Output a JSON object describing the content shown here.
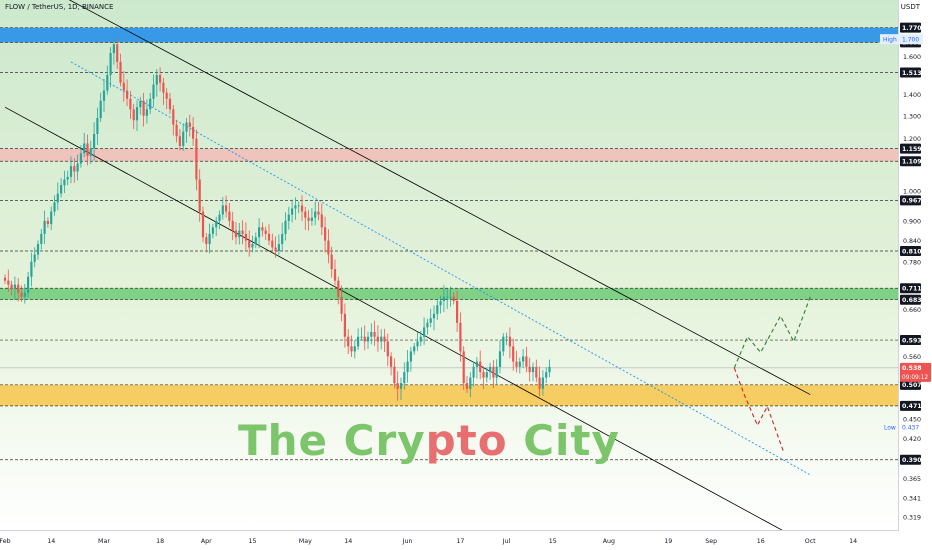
{
  "header": {
    "title": "FLOW / TetherUS, 1D, BINANCE",
    "currency": "USDT"
  },
  "watermark": {
    "part1": "The Cry",
    "part2": "pto",
    "part3": " City"
  },
  "colors": {
    "up": "#26a69a",
    "down": "#ef5350",
    "blue_zone": "#2f96e8",
    "red_zone": "#f4b6b6",
    "green_zone": "#5ec66a",
    "yellow_zone": "#f7c54a",
    "trend_line": "#000000",
    "mid_line": "#2196f3",
    "bg_top": "#cde9cd",
    "bg_bottom": "#ffffff"
  },
  "chart_data": {
    "type": "candlestick",
    "symbol": "FLOW / TetherUS",
    "interval": "1D",
    "exchange": "BINANCE",
    "y_scale": "log",
    "ylim": [
      0.305,
      1.95
    ],
    "x_axis_labels": [
      "Feb",
      "14",
      "Mar",
      "18",
      "Apr",
      "15",
      "May",
      "14",
      "Jun",
      "17",
      "Jul",
      "15",
      "Aug",
      "19",
      "Sep",
      "16",
      "Oct",
      "14"
    ],
    "y_tick_labels": [
      "1.600",
      "1.400",
      "1.300",
      "1.200",
      "1.000",
      "0.900",
      "0.840",
      "0.780",
      "0.660",
      "0.560",
      "0.450",
      "0.420",
      "0.365",
      "0.341",
      "0.319"
    ],
    "price_levels": [
      "1.770",
      "1.681",
      "1.513",
      "1.159",
      "1.109",
      "0.967",
      "0.810",
      "0.711",
      "0.683",
      "0.593",
      "0.507",
      "0.471",
      "0.390"
    ],
    "markers": {
      "high": {
        "label": "High",
        "value": "1.700"
      },
      "low": {
        "label": "Low",
        "value": "0.437"
      },
      "current": {
        "value": "0.538",
        "countdown": "09:09:12"
      }
    },
    "zones": [
      {
        "name": "blue",
        "from": 1.681,
        "to": 1.77
      },
      {
        "name": "red",
        "from": 1.109,
        "to": 1.159
      },
      {
        "name": "green",
        "from": 0.683,
        "to": 0.711
      },
      {
        "name": "yellow",
        "from": 0.471,
        "to": 0.507
      }
    ],
    "dashed_levels": [
      1.513,
      0.967,
      0.81,
      0.593,
      0.39
    ],
    "channel": {
      "upper": [
        [
          "Jan 31",
          2.2
        ],
        [
          "Oct 1",
          0.49
        ]
      ],
      "lower": [
        [
          "Jan 31",
          1.34
        ],
        [
          "Sep 25",
          0.3
        ]
      ],
      "middle": [
        [
          "Feb 20",
          1.57
        ],
        [
          "Oct 1",
          0.37
        ]
      ]
    },
    "close_series": [
      0.73,
      0.72,
      0.71,
      0.72,
      0.7,
      0.69,
      0.7,
      0.74,
      0.78,
      0.8,
      0.83,
      0.86,
      0.9,
      0.89,
      0.93,
      0.96,
      0.99,
      1.02,
      1.04,
      1.05,
      1.09,
      1.07,
      1.1,
      1.14,
      1.18,
      1.13,
      1.16,
      1.22,
      1.29,
      1.37,
      1.42,
      1.5,
      1.62,
      1.67,
      1.57,
      1.46,
      1.42,
      1.38,
      1.33,
      1.28,
      1.34,
      1.37,
      1.3,
      1.33,
      1.38,
      1.45,
      1.5,
      1.46,
      1.41,
      1.38,
      1.33,
      1.26,
      1.21,
      1.17,
      1.23,
      1.27,
      1.25,
      1.2,
      1.04,
      0.93,
      0.85,
      0.83,
      0.86,
      0.88,
      0.9,
      0.92,
      0.95,
      0.93,
      0.9,
      0.87,
      0.85,
      0.87,
      0.86,
      0.84,
      0.82,
      0.83,
      0.85,
      0.88,
      0.87,
      0.86,
      0.84,
      0.82,
      0.81,
      0.83,
      0.86,
      0.9,
      0.92,
      0.94,
      0.95,
      0.95,
      0.93,
      0.91,
      0.9,
      0.91,
      0.93,
      0.92,
      0.88,
      0.84,
      0.8,
      0.76,
      0.73,
      0.69,
      0.65,
      0.6,
      0.58,
      0.57,
      0.58,
      0.6,
      0.6,
      0.59,
      0.6,
      0.61,
      0.6,
      0.59,
      0.6,
      0.59,
      0.56,
      0.54,
      0.51,
      0.5,
      0.51,
      0.53,
      0.55,
      0.57,
      0.58,
      0.59,
      0.6,
      0.62,
      0.63,
      0.64,
      0.65,
      0.67,
      0.68,
      0.69,
      0.69,
      0.69,
      0.68,
      0.63,
      0.57,
      0.51,
      0.5,
      0.52,
      0.54,
      0.55,
      0.53,
      0.52,
      0.53,
      0.54,
      0.52,
      0.54,
      0.57,
      0.6,
      0.6,
      0.58,
      0.55,
      0.54,
      0.55,
      0.56,
      0.54,
      0.53,
      0.54,
      0.52,
      0.5,
      0.52,
      0.53,
      0.54
    ],
    "projection_bull": [
      [
        "Sep 8",
        0.538
      ],
      [
        "Sep 12",
        0.6
      ],
      [
        "Sep 16",
        0.568
      ],
      [
        "Sep 22",
        0.645
      ],
      [
        "Sep 26",
        0.59
      ],
      [
        "Oct 1",
        0.69
      ]
    ],
    "projection_bear": [
      [
        "Sep 8",
        0.538
      ],
      [
        "Sep 11",
        0.49
      ],
      [
        "Sep 15",
        0.44
      ],
      [
        "Sep 18",
        0.47
      ],
      [
        "Sep 23",
        0.4
      ]
    ]
  }
}
